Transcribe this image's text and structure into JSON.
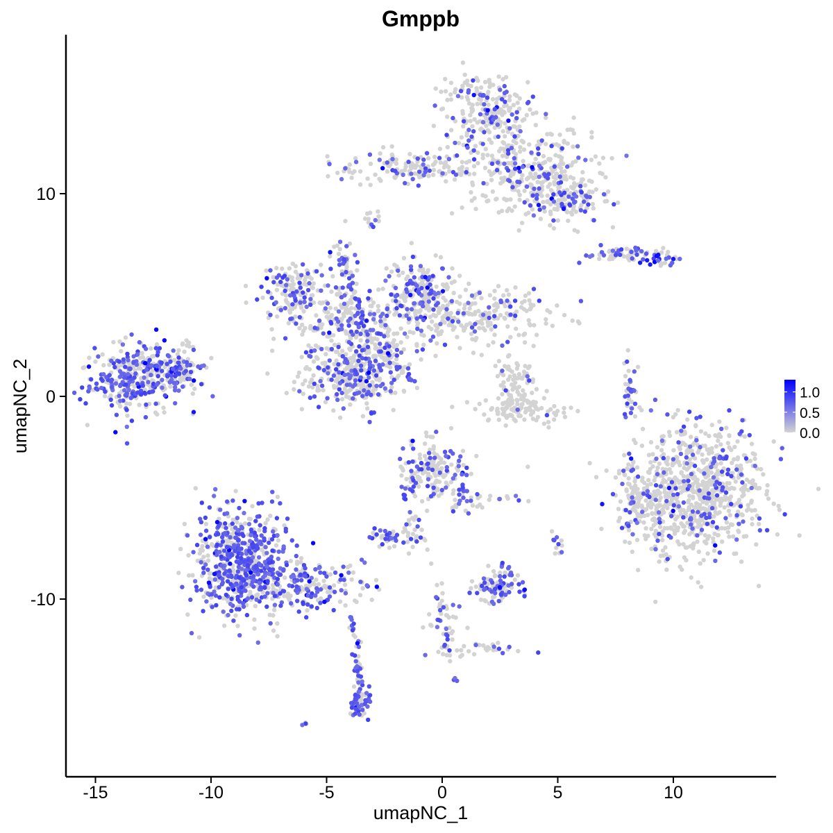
{
  "chart_data": {
    "type": "scatter",
    "title": "Gmppb",
    "xlabel": "umapNC_1",
    "ylabel": "umapNC_2",
    "xlim": [
      -16.5,
      14.5
    ],
    "ylim": [
      -18.5,
      17.5
    ],
    "x_ticks": [
      -15,
      -10,
      -5,
      0,
      5,
      10
    ],
    "x_tick_labels": [
      "-15",
      "-10",
      "-5",
      "0",
      "5",
      "10"
    ],
    "y_ticks": [
      -10,
      0,
      10
    ],
    "y_tick_labels": [
      "-10",
      "0",
      "10"
    ],
    "grid": false,
    "legend": {
      "placement": "right",
      "type": "colorbar",
      "low_color": "#d3d3d3",
      "high_color": "#0000ff",
      "range": [
        0,
        1.3
      ],
      "ticks": [
        0.0,
        0.5,
        1.0
      ],
      "tick_labels": [
        "0.0",
        "0.5",
        "1.0"
      ]
    },
    "clusters": [
      {
        "x": -13.0,
        "y": 0.9,
        "sx": 1.1,
        "sy": 0.8,
        "n": 380,
        "frac": 0.55,
        "colored": "mid"
      },
      {
        "x": -11.2,
        "y": 1.3,
        "sx": 0.5,
        "sy": 0.4,
        "n": 40,
        "frac": 0.5,
        "colored": "mid"
      },
      {
        "x": -11.1,
        "y": 2.5,
        "sx": 0.2,
        "sy": 0.2,
        "n": 10,
        "frac": 0.1,
        "colored": "low"
      },
      {
        "x": -6.5,
        "y": 5.2,
        "sx": 0.7,
        "sy": 0.7,
        "n": 130,
        "frac": 0.35,
        "colored": "mid"
      },
      {
        "x": -3.8,
        "y": 1.0,
        "sx": 1.0,
        "sy": 0.8,
        "n": 300,
        "frac": 0.3,
        "colored": "mid"
      },
      {
        "x": -4.0,
        "y": 3.5,
        "sx": 1.5,
        "sy": 1.0,
        "n": 250,
        "frac": 0.28,
        "colored": "mid"
      },
      {
        "x": -1.0,
        "y": 5.3,
        "sx": 0.7,
        "sy": 0.9,
        "n": 160,
        "frac": 0.35,
        "colored": "mid"
      },
      {
        "x": 1.5,
        "y": 4.0,
        "sx": 1.8,
        "sy": 0.7,
        "n": 240,
        "frac": 0.15,
        "colored": "mid"
      },
      {
        "x": -2.5,
        "y": 2.0,
        "sx": 0.8,
        "sy": 0.5,
        "n": 60,
        "frac": 0.3,
        "colored": "mid"
      },
      {
        "x": -4.3,
        "y": 6.5,
        "sx": 0.3,
        "sy": 0.6,
        "n": 40,
        "frac": 0.4,
        "colored": "mid"
      },
      {
        "x": 3.2,
        "y": 0.6,
        "sx": 0.4,
        "sy": 0.6,
        "n": 80,
        "frac": 0.05,
        "colored": "low"
      },
      {
        "x": 3.5,
        "y": -0.6,
        "sx": 1.0,
        "sy": 0.3,
        "n": 100,
        "frac": 0.05,
        "colored": "low"
      },
      {
        "x": 2.0,
        "y": 14.0,
        "sx": 1.0,
        "sy": 1.0,
        "n": 220,
        "frac": 0.2,
        "colored": "mid"
      },
      {
        "x": 3.8,
        "y": 11.2,
        "sx": 1.4,
        "sy": 1.1,
        "n": 330,
        "frac": 0.2,
        "colored": "mid"
      },
      {
        "x": 5.3,
        "y": 9.7,
        "sx": 0.9,
        "sy": 0.6,
        "n": 120,
        "frac": 0.25,
        "colored": "mid"
      },
      {
        "x": -1.8,
        "y": 11.3,
        "sx": 1.5,
        "sy": 0.4,
        "n": 120,
        "frac": 0.25,
        "colored": "mid"
      },
      {
        "x": -3.0,
        "y": 8.8,
        "sx": 0.15,
        "sy": 0.25,
        "n": 12,
        "frac": 0.4,
        "colored": "mid"
      },
      {
        "x": 7.8,
        "y": 7.0,
        "sx": 0.8,
        "sy": 0.2,
        "n": 40,
        "frac": 0.3,
        "colored": "mid"
      },
      {
        "x": 9.5,
        "y": 6.8,
        "sx": 0.4,
        "sy": 0.3,
        "n": 30,
        "frac": 0.5,
        "colored": "high"
      },
      {
        "x": 8.1,
        "y": 0.2,
        "sx": 0.15,
        "sy": 0.9,
        "n": 35,
        "frac": 0.6,
        "colored": "mid"
      },
      {
        "x": 10.9,
        "y": -4.7,
        "sx": 1.5,
        "sy": 1.6,
        "n": 850,
        "frac": 0.15,
        "colored": "mid"
      },
      {
        "x": 8.4,
        "y": -5.2,
        "sx": 0.4,
        "sy": 0.8,
        "n": 60,
        "frac": 0.3,
        "colored": "mid"
      },
      {
        "x": -8.6,
        "y": -8.2,
        "sx": 1.0,
        "sy": 1.3,
        "n": 650,
        "frac": 0.55,
        "colored": "mid"
      },
      {
        "x": -5.8,
        "y": -9.4,
        "sx": 1.2,
        "sy": 0.55,
        "n": 170,
        "frac": 0.5,
        "colored": "mid"
      },
      {
        "x": -3.5,
        "y": -15.0,
        "sx": 0.22,
        "sy": 0.5,
        "n": 55,
        "frac": 0.7,
        "colored": "mid"
      },
      {
        "x": -3.6,
        "y": -13.5,
        "sx": 0.1,
        "sy": 0.8,
        "n": 20,
        "frac": 0.4,
        "colored": "mid"
      },
      {
        "x": -6.0,
        "y": -16.2,
        "sx": 0.1,
        "sy": 0.05,
        "n": 5,
        "frac": 0.8,
        "colored": "mid"
      },
      {
        "x": -0.4,
        "y": -3.6,
        "sx": 0.7,
        "sy": 0.8,
        "n": 150,
        "frac": 0.3,
        "colored": "mid"
      },
      {
        "x": 1.1,
        "y": -5.0,
        "sx": 0.3,
        "sy": 0.6,
        "n": 30,
        "frac": 0.4,
        "colored": "mid"
      },
      {
        "x": -1.3,
        "y": -6.5,
        "sx": 0.3,
        "sy": 0.6,
        "n": 30,
        "frac": 0.35,
        "colored": "mid"
      },
      {
        "x": -2.6,
        "y": -7.0,
        "sx": 0.4,
        "sy": 0.2,
        "n": 35,
        "frac": 0.5,
        "colored": "mid"
      },
      {
        "x": 2.3,
        "y": -9.5,
        "sx": 0.6,
        "sy": 0.3,
        "n": 80,
        "frac": 0.55,
        "colored": "mid"
      },
      {
        "x": 2.6,
        "y": -8.7,
        "sx": 0.3,
        "sy": 0.3,
        "n": 25,
        "frac": 0.4,
        "colored": "mid"
      },
      {
        "x": 0.1,
        "y": -11.0,
        "sx": 0.35,
        "sy": 1.0,
        "n": 45,
        "frac": 0.3,
        "colored": "mid"
      },
      {
        "x": 1.8,
        "y": -12.5,
        "sx": 0.9,
        "sy": 0.2,
        "n": 30,
        "frac": 0.2,
        "colored": "mid"
      },
      {
        "x": 5.0,
        "y": -7.3,
        "sx": 0.12,
        "sy": 0.3,
        "n": 12,
        "frac": 0.7,
        "colored": "mid"
      },
      {
        "x": 2.6,
        "y": -5.0,
        "sx": 0.4,
        "sy": 0.08,
        "n": 10,
        "frac": 0.3,
        "colored": "mid"
      },
      {
        "x": 0.6,
        "y": -14.0,
        "sx": 0.06,
        "sy": 0.06,
        "n": 3,
        "frac": 0.8,
        "colored": "mid"
      }
    ],
    "ridges": [
      {
        "x1": -4.5,
        "y1": 7.5,
        "x2": -3.2,
        "y2": 2.8,
        "n": 40
      },
      {
        "x1": -2.0,
        "y1": 1.5,
        "x2": -1.3,
        "y2": 0.8,
        "n": 18
      },
      {
        "x1": -4.0,
        "y1": -10.4,
        "x2": -3.6,
        "y2": -14.0,
        "n": 25
      },
      {
        "x1": 0.1,
        "y1": -12.2,
        "x2": 0.4,
        "y2": -13.0,
        "n": 8
      },
      {
        "x1": -1.6,
        "y1": -5.0,
        "x2": -0.8,
        "y2": -3.6,
        "n": 15
      },
      {
        "x1": -2.0,
        "y1": 11.0,
        "x2": 0.9,
        "y2": 11.0,
        "n": 25
      },
      {
        "x1": 7.0,
        "y1": 7.1,
        "x2": 8.8,
        "y2": 7.2,
        "n": 20
      },
      {
        "x1": -2.8,
        "y1": 3.0,
        "x2": -1.5,
        "y2": 5.2,
        "n": 20
      }
    ]
  }
}
